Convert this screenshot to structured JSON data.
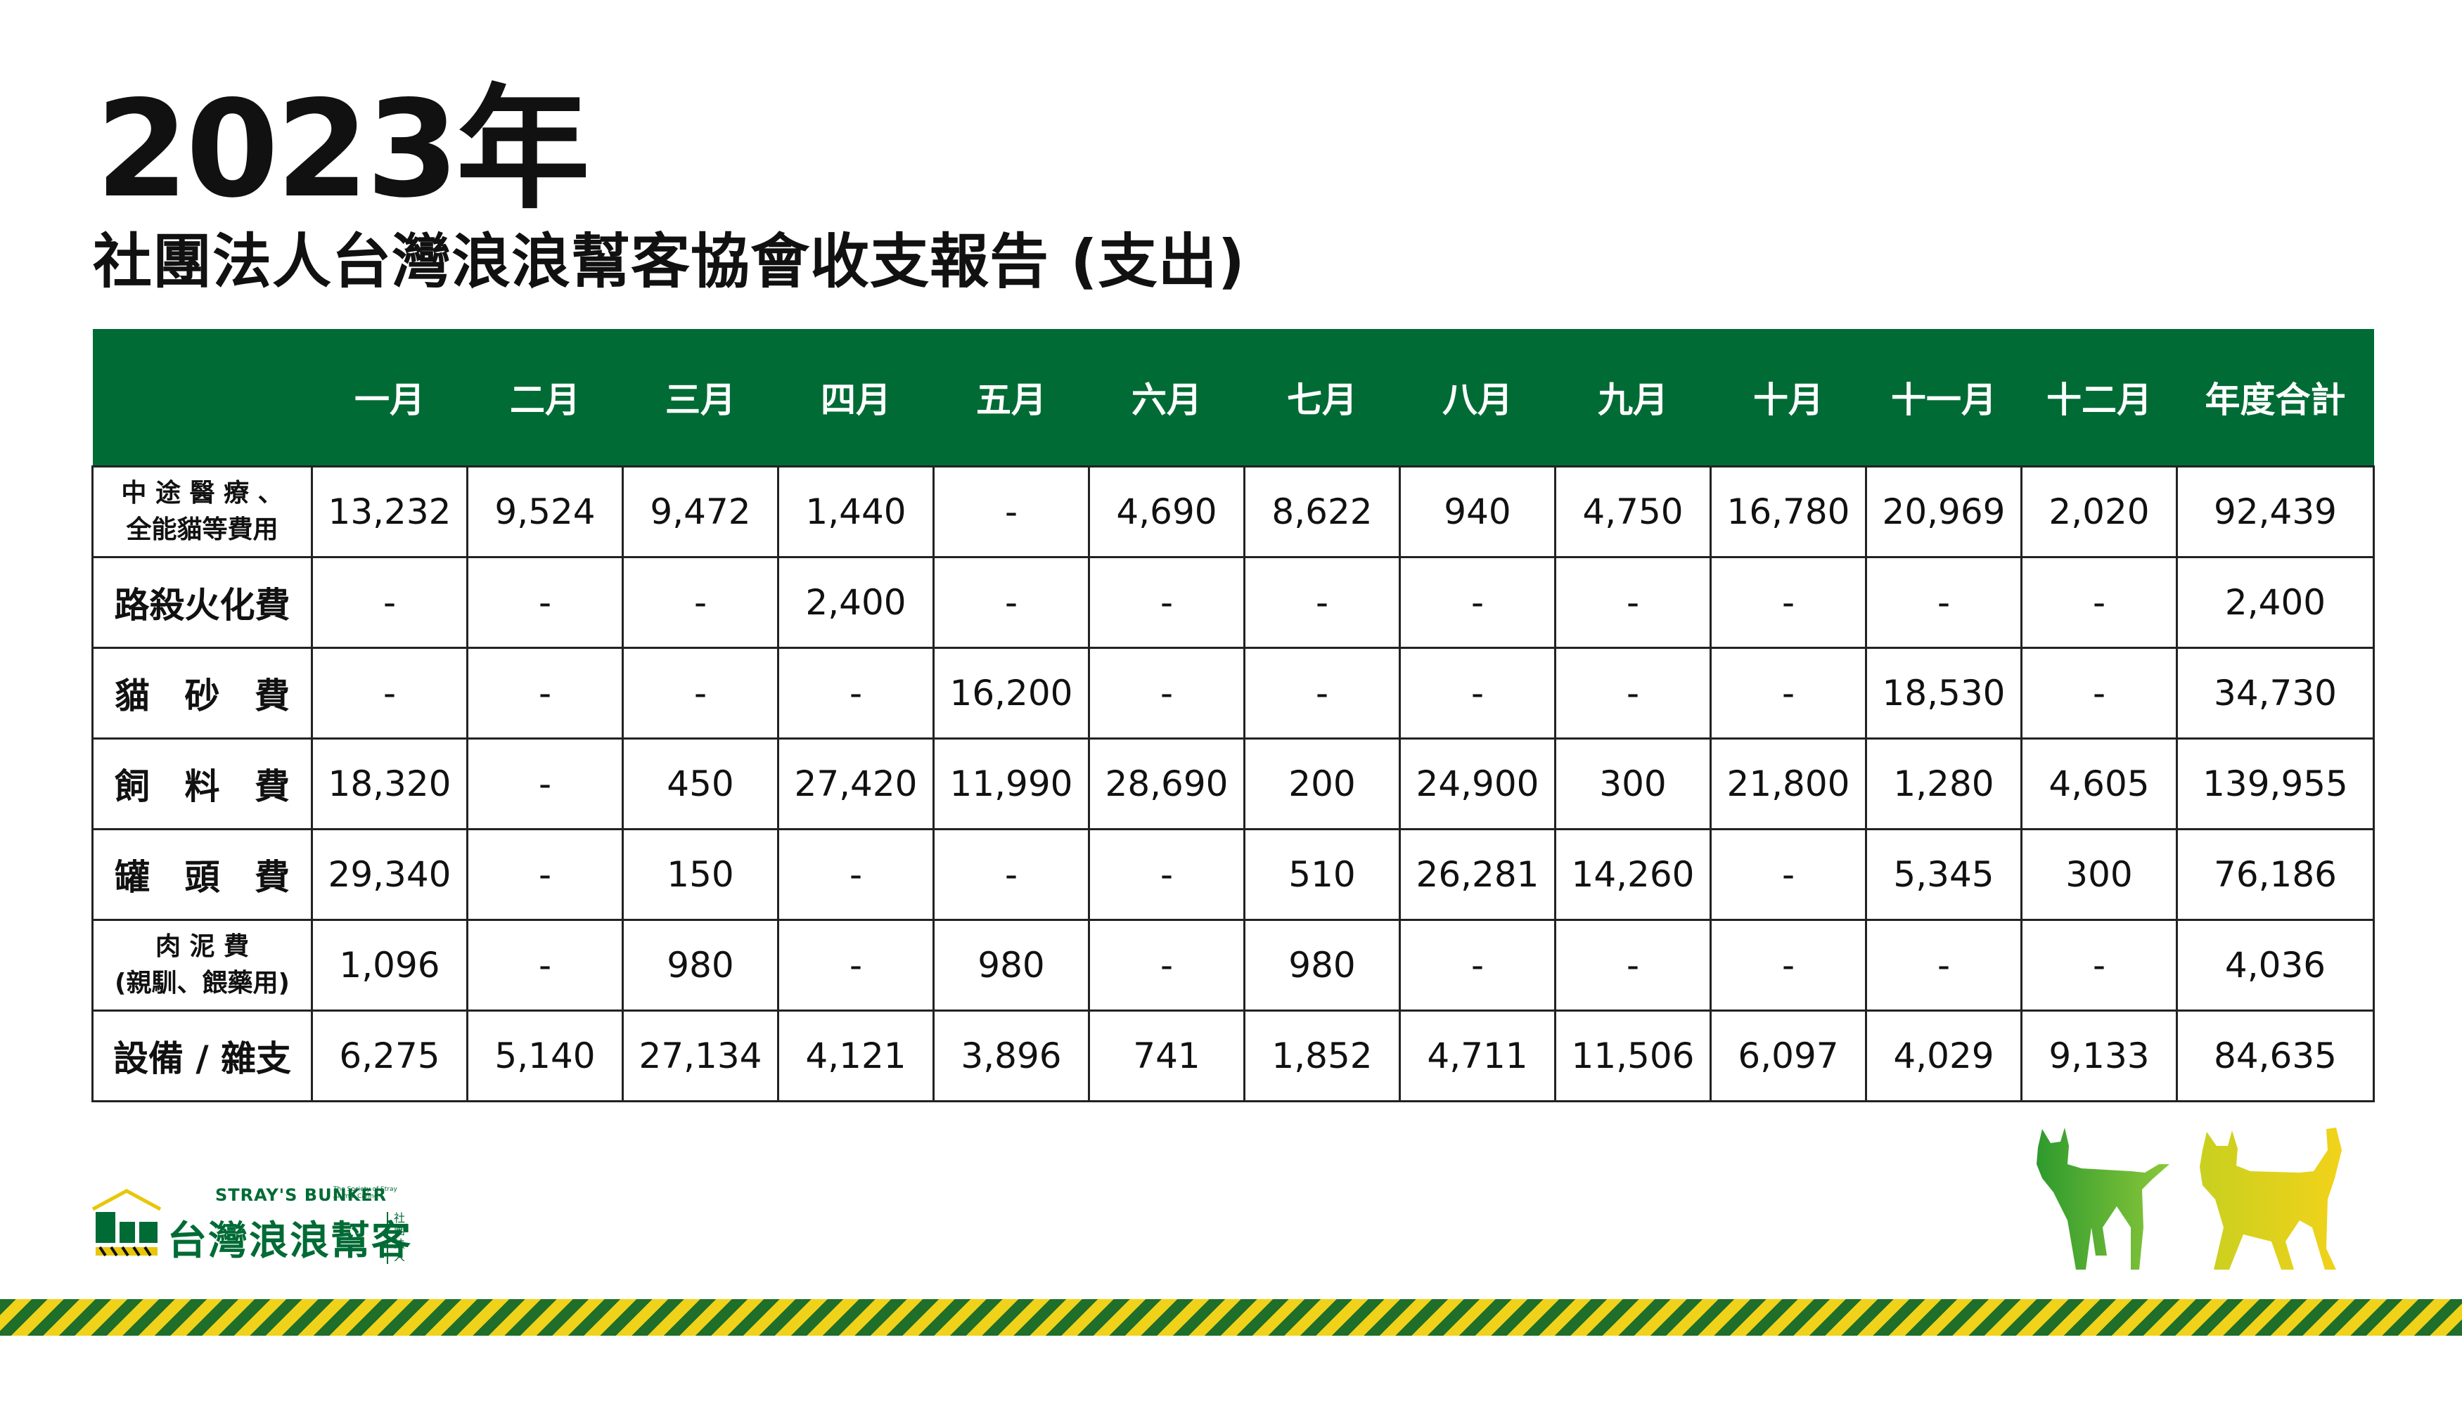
{
  "title": {
    "year": "2023年",
    "subtitle": "社團法人台灣浪浪幫客協會收支報告 (支出)"
  },
  "table": {
    "corner": "",
    "headers": [
      "一月",
      "二月",
      "三月",
      "四月",
      "五月",
      "六月",
      "七月",
      "八月",
      "九月",
      "十月",
      "十一月",
      "十二月",
      "年度合計"
    ],
    "rows": [
      {
        "label": "中途醫療、全能貓等費用",
        "label_line1": "中 途 醫 療 、",
        "label_line2": "全能貓等費用",
        "values": [
          "13,232",
          "9,524",
          "9,472",
          "1,440",
          "-",
          "4,690",
          "8,622",
          "940",
          "4,750",
          "16,780",
          "20,969",
          "2,020",
          "92,439"
        ]
      },
      {
        "label": "路殺火化費",
        "values": [
          "-",
          "-",
          "-",
          "2,400",
          "-",
          "-",
          "-",
          "-",
          "-",
          "-",
          "-",
          "-",
          "2,400"
        ]
      },
      {
        "label": "貓砂費",
        "values": [
          "-",
          "-",
          "-",
          "-",
          "16,200",
          "-",
          "-",
          "-",
          "-",
          "-",
          "18,530",
          "-",
          "34,730"
        ]
      },
      {
        "label": "飼料費",
        "values": [
          "18,320",
          "-",
          "450",
          "27,420",
          "11,990",
          "28,690",
          "200",
          "24,900",
          "300",
          "21,800",
          "1,280",
          "4,605",
          "139,955"
        ]
      },
      {
        "label": "罐頭費",
        "values": [
          "29,340",
          "-",
          "150",
          "-",
          "-",
          "-",
          "510",
          "26,281",
          "14,260",
          "-",
          "5,345",
          "300",
          "76,186"
        ]
      },
      {
        "label": "肉泥費(親馴、餵藥用)",
        "label_line1": "肉 泥 費",
        "label_line2": "(親馴、餵藥用)",
        "values": [
          "1,096",
          "-",
          "980",
          "-",
          "980",
          "-",
          "980",
          "-",
          "-",
          "-",
          "-",
          "-",
          "4,036"
        ]
      },
      {
        "label": "設備 / 雜支",
        "values": [
          "6,275",
          "5,140",
          "27,134",
          "4,121",
          "3,896",
          "741",
          "1,852",
          "4,711",
          "11,506",
          "6,097",
          "4,029",
          "9,133",
          "84,635"
        ]
      }
    ]
  },
  "logo": {
    "en": "STRAY'S BUNKER",
    "tagline": "The Society of Stray Animal Caring",
    "zh": "台灣浪浪幫客",
    "side": "社團法人"
  },
  "colors": {
    "header_green": "#006b35",
    "cat_green": "#2e9a2e",
    "cat_yellow": "#e8d018",
    "stripe_green": "#1f6e2a",
    "stripe_yellow": "#f0d21a"
  }
}
